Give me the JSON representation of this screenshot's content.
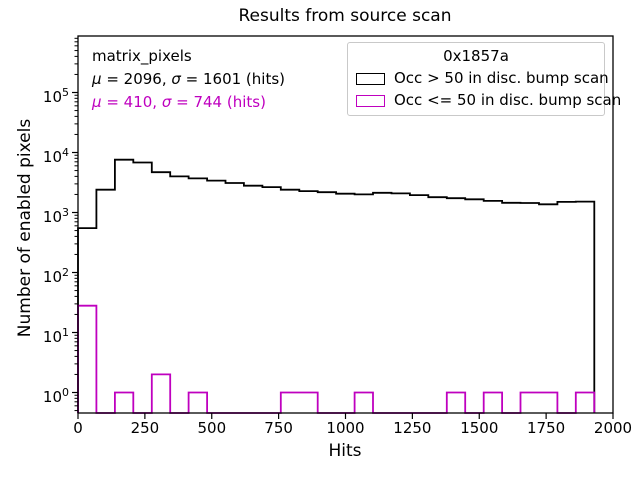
{
  "title": "Results from source scan",
  "axes": {
    "xlabel": "Hits",
    "ylabel": "Number of enabled pixels"
  },
  "annotations": {
    "line1": "matrix_pixels",
    "line2_mu": "μ",
    "line2_rest1": " = 2096, ",
    "line2_sigma": "σ",
    "line2_rest2": " = 1601 (hits)",
    "line3_mu": "μ",
    "line3_rest1": " = 410, ",
    "line3_sigma": "σ",
    "line3_rest2": " = 744 (hits)",
    "black_stats_color": "#000000",
    "magenta_stats_color": "#bf00bf"
  },
  "legend": {
    "title": "0x1857a",
    "items": [
      {
        "label": "Occ > 50 in disc. bump scan",
        "color": "#000000"
      },
      {
        "label": "Occ <= 50 in disc. bump scan",
        "color": "#bf00bf"
      }
    ]
  },
  "chart_data": {
    "type": "histogram-step",
    "title": "Results from source scan",
    "xlabel": "Hits",
    "ylabel": "Number of enabled pixels",
    "yscale": "log",
    "xlim": [
      0,
      2000
    ],
    "ylim": [
      0.455,
      860000
    ],
    "x_ticks": [
      0,
      250,
      500,
      750,
      1000,
      1250,
      1500,
      1750,
      2000
    ],
    "y_tick_exponents": [
      0,
      1,
      2,
      3,
      4,
      5
    ],
    "grid": false,
    "legend_position": "upper right",
    "legend_title": "0x1857a",
    "bins": {
      "start": 0,
      "width": 68.93,
      "count": 28,
      "range_end": 1930
    },
    "series": [
      {
        "name": "Occ > 50 in disc. bump scan",
        "color": "#000000",
        "mu_hits": 2096,
        "sigma_hits": 1601,
        "counts": [
          550,
          2400,
          7600,
          6800,
          4700,
          4000,
          3700,
          3400,
          3100,
          2800,
          2650,
          2400,
          2270,
          2180,
          2060,
          2000,
          2130,
          2080,
          1950,
          1800,
          1730,
          1660,
          1560,
          1450,
          1440,
          1370,
          1500,
          1520
        ]
      },
      {
        "name": "Occ <= 50 in disc. bump scan",
        "color": "#bf00bf",
        "mu_hits": 410,
        "sigma_hits": 744,
        "counts": [
          28,
          0,
          1,
          0,
          2,
          0,
          1,
          0,
          0,
          0,
          0,
          1,
          1,
          0,
          0,
          1,
          0,
          0,
          0,
          0,
          1,
          0,
          1,
          0,
          1,
          1,
          0,
          1
        ]
      }
    ],
    "annotation_text": [
      "matrix_pixels",
      "μ = 2096, σ = 1601 (hits)",
      "μ = 410, σ = 744 (hits)"
    ]
  }
}
